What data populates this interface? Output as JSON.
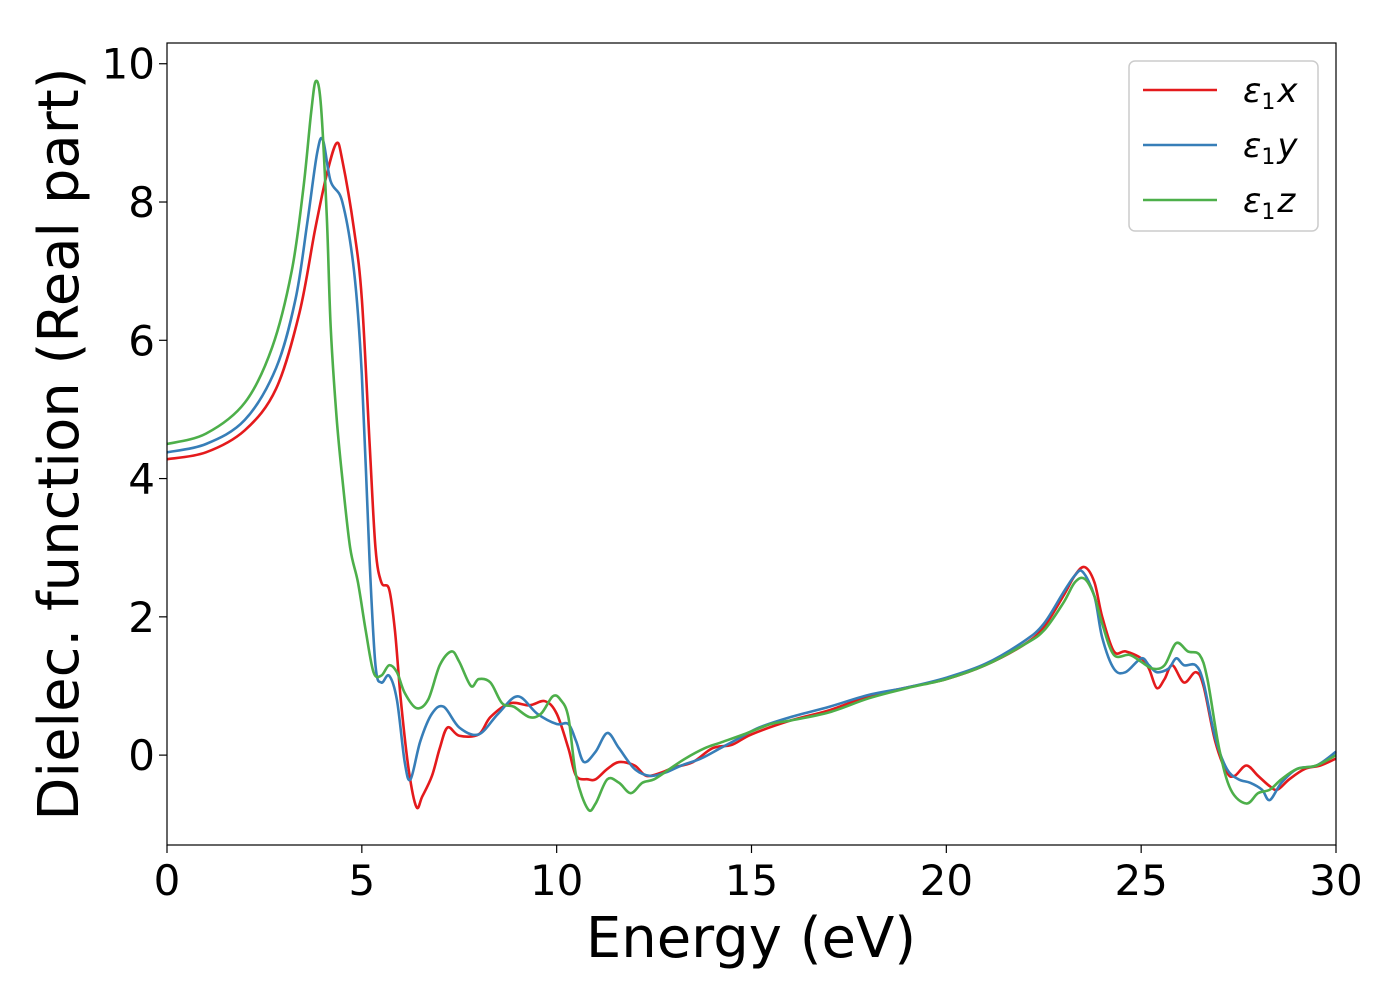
{
  "chart_data": {
    "type": "line",
    "xlabel": "Energy (eV)",
    "ylabel": "Dielec. function (Real part)",
    "xlim": [
      0,
      30
    ],
    "ylim": [
      -1.3,
      10.3
    ],
    "xticks": [
      0,
      5,
      10,
      15,
      20,
      25,
      30
    ],
    "xtick_labels": [
      "0",
      "5",
      "10",
      "15",
      "20",
      "25",
      "30"
    ],
    "yticks": [
      0,
      2,
      4,
      6,
      8,
      10
    ],
    "ytick_labels": [
      "0",
      "2",
      "4",
      "6",
      "8",
      "10"
    ],
    "grid": false,
    "legend_position": "top-right",
    "series": [
      {
        "name_symbol": "ε",
        "name_sub": "1",
        "name_axis": "x",
        "color": "#e41a1c",
        "points": [
          [
            0.0,
            4.28
          ],
          [
            1.0,
            4.38
          ],
          [
            2.0,
            4.7
          ],
          [
            2.8,
            5.3
          ],
          [
            3.4,
            6.4
          ],
          [
            3.8,
            7.6
          ],
          [
            4.1,
            8.4
          ],
          [
            4.35,
            8.85
          ],
          [
            4.5,
            8.6
          ],
          [
            4.8,
            7.6
          ],
          [
            5.0,
            6.6
          ],
          [
            5.2,
            4.5
          ],
          [
            5.35,
            3.0
          ],
          [
            5.5,
            2.5
          ],
          [
            5.7,
            2.4
          ],
          [
            5.85,
            1.8
          ],
          [
            6.0,
            0.8
          ],
          [
            6.2,
            -0.2
          ],
          [
            6.4,
            -0.75
          ],
          [
            6.55,
            -0.6
          ],
          [
            6.8,
            -0.3
          ],
          [
            7.0,
            0.1
          ],
          [
            7.2,
            0.4
          ],
          [
            7.5,
            0.28
          ],
          [
            8.0,
            0.3
          ],
          [
            8.3,
            0.55
          ],
          [
            8.8,
            0.75
          ],
          [
            9.3,
            0.72
          ],
          [
            9.7,
            0.78
          ],
          [
            10.0,
            0.6
          ],
          [
            10.3,
            0.1
          ],
          [
            10.5,
            -0.3
          ],
          [
            10.8,
            -0.35
          ],
          [
            11.0,
            -0.35
          ],
          [
            11.3,
            -0.2
          ],
          [
            11.6,
            -0.1
          ],
          [
            12.0,
            -0.15
          ],
          [
            12.3,
            -0.3
          ],
          [
            12.7,
            -0.25
          ],
          [
            13.0,
            -0.18
          ],
          [
            13.5,
            -0.1
          ],
          [
            14.0,
            0.1
          ],
          [
            14.5,
            0.15
          ],
          [
            15.0,
            0.3
          ],
          [
            16.0,
            0.5
          ],
          [
            17.0,
            0.65
          ],
          [
            18.0,
            0.85
          ],
          [
            19.0,
            0.98
          ],
          [
            20.0,
            1.1
          ],
          [
            21.0,
            1.3
          ],
          [
            22.0,
            1.6
          ],
          [
            22.5,
            1.85
          ],
          [
            23.0,
            2.3
          ],
          [
            23.3,
            2.6
          ],
          [
            23.55,
            2.72
          ],
          [
            23.8,
            2.5
          ],
          [
            24.0,
            2.0
          ],
          [
            24.3,
            1.5
          ],
          [
            24.6,
            1.5
          ],
          [
            25.0,
            1.4
          ],
          [
            25.2,
            1.25
          ],
          [
            25.4,
            0.97
          ],
          [
            25.6,
            1.1
          ],
          [
            25.8,
            1.3
          ],
          [
            26.1,
            1.05
          ],
          [
            26.4,
            1.2
          ],
          [
            26.6,
            1.0
          ],
          [
            26.9,
            0.2
          ],
          [
            27.2,
            -0.25
          ],
          [
            27.4,
            -0.3
          ],
          [
            27.7,
            -0.15
          ],
          [
            28.0,
            -0.3
          ],
          [
            28.3,
            -0.45
          ],
          [
            28.5,
            -0.5
          ],
          [
            28.8,
            -0.35
          ],
          [
            29.2,
            -0.2
          ],
          [
            29.6,
            -0.15
          ],
          [
            30.0,
            -0.05
          ]
        ]
      },
      {
        "name_symbol": "ε",
        "name_sub": "1",
        "name_axis": "y",
        "color": "#377eb8",
        "points": [
          [
            0.0,
            4.38
          ],
          [
            1.0,
            4.5
          ],
          [
            2.0,
            4.85
          ],
          [
            2.8,
            5.6
          ],
          [
            3.3,
            6.6
          ],
          [
            3.6,
            7.7
          ],
          [
            3.85,
            8.7
          ],
          [
            4.0,
            8.9
          ],
          [
            4.2,
            8.3
          ],
          [
            4.5,
            8.0
          ],
          [
            4.8,
            7.0
          ],
          [
            5.0,
            5.5
          ],
          [
            5.2,
            2.8
          ],
          [
            5.35,
            1.3
          ],
          [
            5.5,
            1.05
          ],
          [
            5.7,
            1.15
          ],
          [
            5.9,
            0.8
          ],
          [
            6.1,
            -0.1
          ],
          [
            6.25,
            -0.35
          ],
          [
            6.5,
            0.2
          ],
          [
            6.8,
            0.6
          ],
          [
            7.1,
            0.7
          ],
          [
            7.5,
            0.4
          ],
          [
            8.0,
            0.3
          ],
          [
            8.5,
            0.6
          ],
          [
            9.0,
            0.85
          ],
          [
            9.5,
            0.6
          ],
          [
            10.0,
            0.45
          ],
          [
            10.3,
            0.45
          ],
          [
            10.5,
            0.2
          ],
          [
            10.7,
            -0.1
          ],
          [
            11.0,
            0.05
          ],
          [
            11.3,
            0.32
          ],
          [
            11.6,
            0.1
          ],
          [
            12.0,
            -0.2
          ],
          [
            12.4,
            -0.3
          ],
          [
            12.8,
            -0.25
          ],
          [
            13.2,
            -0.15
          ],
          [
            13.7,
            -0.05
          ],
          [
            14.2,
            0.1
          ],
          [
            14.7,
            0.25
          ],
          [
            15.2,
            0.4
          ],
          [
            16.0,
            0.55
          ],
          [
            17.0,
            0.7
          ],
          [
            18.0,
            0.87
          ],
          [
            19.0,
            0.98
          ],
          [
            20.0,
            1.12
          ],
          [
            21.0,
            1.32
          ],
          [
            22.0,
            1.65
          ],
          [
            22.5,
            1.9
          ],
          [
            23.0,
            2.35
          ],
          [
            23.3,
            2.6
          ],
          [
            23.5,
            2.65
          ],
          [
            23.8,
            2.3
          ],
          [
            24.0,
            1.7
          ],
          [
            24.3,
            1.25
          ],
          [
            24.6,
            1.2
          ],
          [
            25.0,
            1.4
          ],
          [
            25.2,
            1.3
          ],
          [
            25.4,
            1.2
          ],
          [
            25.7,
            1.25
          ],
          [
            25.9,
            1.4
          ],
          [
            26.1,
            1.3
          ],
          [
            26.4,
            1.3
          ],
          [
            26.6,
            1.05
          ],
          [
            26.9,
            0.25
          ],
          [
            27.2,
            -0.2
          ],
          [
            27.5,
            -0.35
          ],
          [
            27.8,
            -0.4
          ],
          [
            28.1,
            -0.5
          ],
          [
            28.3,
            -0.65
          ],
          [
            28.6,
            -0.4
          ],
          [
            29.0,
            -0.2
          ],
          [
            29.5,
            -0.15
          ],
          [
            30.0,
            0.05
          ]
        ]
      },
      {
        "name_symbol": "ε",
        "name_sub": "1",
        "name_axis": "z",
        "color": "#4daf4a",
        "points": [
          [
            0.0,
            4.5
          ],
          [
            1.0,
            4.65
          ],
          [
            2.0,
            5.1
          ],
          [
            2.7,
            5.9
          ],
          [
            3.2,
            7.0
          ],
          [
            3.5,
            8.2
          ],
          [
            3.7,
            9.3
          ],
          [
            3.82,
            9.75
          ],
          [
            3.95,
            9.4
          ],
          [
            4.1,
            7.8
          ],
          [
            4.2,
            6.2
          ],
          [
            4.35,
            4.9
          ],
          [
            4.5,
            4.0
          ],
          [
            4.7,
            3.0
          ],
          [
            4.9,
            2.5
          ],
          [
            5.1,
            1.8
          ],
          [
            5.3,
            1.2
          ],
          [
            5.5,
            1.15
          ],
          [
            5.7,
            1.3
          ],
          [
            5.9,
            1.2
          ],
          [
            6.1,
            0.9
          ],
          [
            6.4,
            0.68
          ],
          [
            6.7,
            0.8
          ],
          [
            7.0,
            1.3
          ],
          [
            7.3,
            1.5
          ],
          [
            7.5,
            1.35
          ],
          [
            7.8,
            1.0
          ],
          [
            8.0,
            1.1
          ],
          [
            8.3,
            1.05
          ],
          [
            8.6,
            0.75
          ],
          [
            8.9,
            0.7
          ],
          [
            9.3,
            0.55
          ],
          [
            9.6,
            0.6
          ],
          [
            9.9,
            0.85
          ],
          [
            10.1,
            0.8
          ],
          [
            10.3,
            0.55
          ],
          [
            10.5,
            -0.3
          ],
          [
            10.8,
            -0.78
          ],
          [
            11.0,
            -0.7
          ],
          [
            11.3,
            -0.35
          ],
          [
            11.6,
            -0.4
          ],
          [
            11.9,
            -0.55
          ],
          [
            12.2,
            -0.4
          ],
          [
            12.5,
            -0.35
          ],
          [
            12.9,
            -0.2
          ],
          [
            13.3,
            -0.05
          ],
          [
            13.8,
            0.1
          ],
          [
            14.2,
            0.18
          ],
          [
            14.8,
            0.3
          ],
          [
            15.5,
            0.45
          ],
          [
            16.0,
            0.5
          ],
          [
            17.0,
            0.62
          ],
          [
            18.0,
            0.82
          ],
          [
            19.0,
            0.97
          ],
          [
            20.0,
            1.1
          ],
          [
            21.0,
            1.3
          ],
          [
            22.0,
            1.6
          ],
          [
            22.5,
            1.8
          ],
          [
            23.0,
            2.2
          ],
          [
            23.3,
            2.5
          ],
          [
            23.55,
            2.55
          ],
          [
            23.8,
            2.3
          ],
          [
            24.0,
            1.9
          ],
          [
            24.3,
            1.45
          ],
          [
            24.7,
            1.45
          ],
          [
            25.0,
            1.35
          ],
          [
            25.3,
            1.25
          ],
          [
            25.6,
            1.3
          ],
          [
            25.9,
            1.62
          ],
          [
            26.2,
            1.5
          ],
          [
            26.5,
            1.45
          ],
          [
            26.7,
            1.1
          ],
          [
            27.0,
            0.1
          ],
          [
            27.3,
            -0.5
          ],
          [
            27.7,
            -0.7
          ],
          [
            28.0,
            -0.55
          ],
          [
            28.3,
            -0.5
          ],
          [
            28.6,
            -0.35
          ],
          [
            29.0,
            -0.2
          ],
          [
            29.5,
            -0.15
          ],
          [
            30.0,
            0.0
          ]
        ]
      }
    ]
  }
}
